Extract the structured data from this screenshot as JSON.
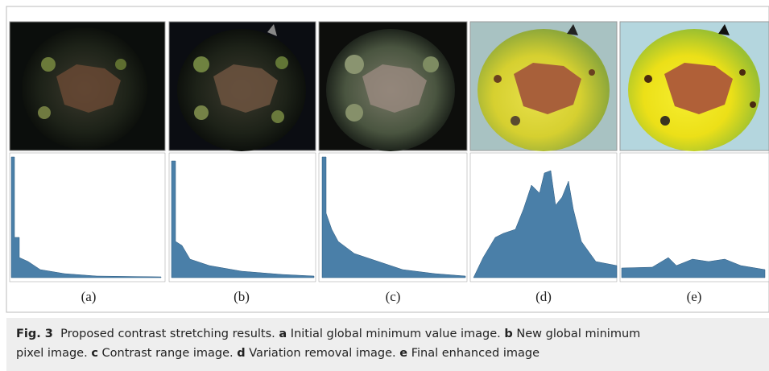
{
  "figure": {
    "panel_labels": [
      "(a)",
      "(b)",
      "(c)",
      "(d)",
      "(e)"
    ]
  },
  "caption": {
    "label": "Fig. 3",
    "text": "Proposed contrast stretching results.",
    "items": [
      {
        "letter": "a",
        "text": "Initial global minimum value image."
      },
      {
        "letter": "b",
        "text": "New global minimum pixel image."
      },
      {
        "letter": "c",
        "text": "Contrast range image."
      },
      {
        "letter": "d",
        "text": "Variation removal image."
      },
      {
        "letter": "e",
        "text": "Final enhanced image"
      }
    ]
  }
}
